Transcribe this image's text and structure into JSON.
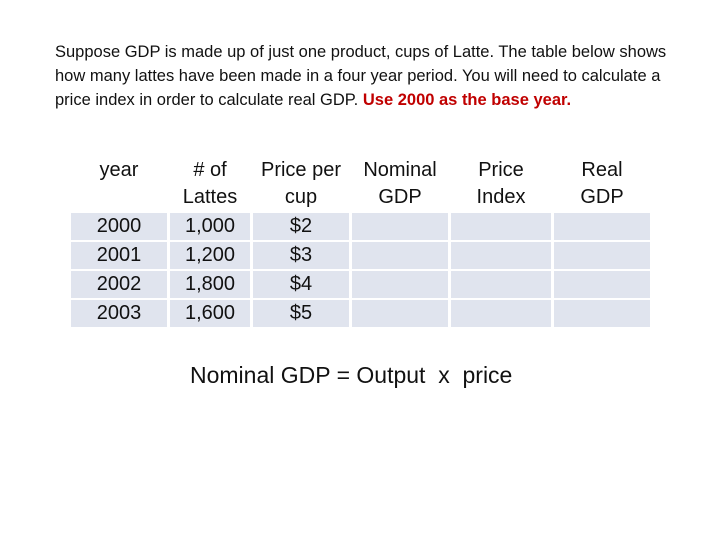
{
  "intro": {
    "text": "Suppose GDP is made up of just one product, cups of Latte.  The table below shows how many lattes have been made in a four year period.  You will need to calculate a price index in order to calculate real GDP.  ",
    "highlight": "Use 2000 as the base year.",
    "highlight_color": "#c00000"
  },
  "table": {
    "headers": {
      "year": "year",
      "lattes_line1": "# of",
      "lattes_line2": "Lattes",
      "price_line1": "Price per",
      "price_line2": "cup",
      "nominal_line1": "Nominal",
      "nominal_line2": "GDP",
      "index_line1": "Price",
      "index_line2": "Index",
      "real_line1": "Real",
      "real_line2": "GDP"
    },
    "rows": [
      {
        "year": "2000",
        "lattes": "1,000",
        "price": "$2",
        "nominal": "",
        "index": "",
        "real": ""
      },
      {
        "year": "2001",
        "lattes": "1,200",
        "price": "$3",
        "nominal": "",
        "index": "",
        "real": ""
      },
      {
        "year": "2002",
        "lattes": "1,800",
        "price": "$4",
        "nominal": "",
        "index": "",
        "real": ""
      },
      {
        "year": "2003",
        "lattes": "1,600",
        "price": "$5",
        "nominal": "",
        "index": "",
        "real": ""
      }
    ],
    "cell_color": "#e0e4ee"
  },
  "formula": "Nominal GDP = Output  x  price"
}
